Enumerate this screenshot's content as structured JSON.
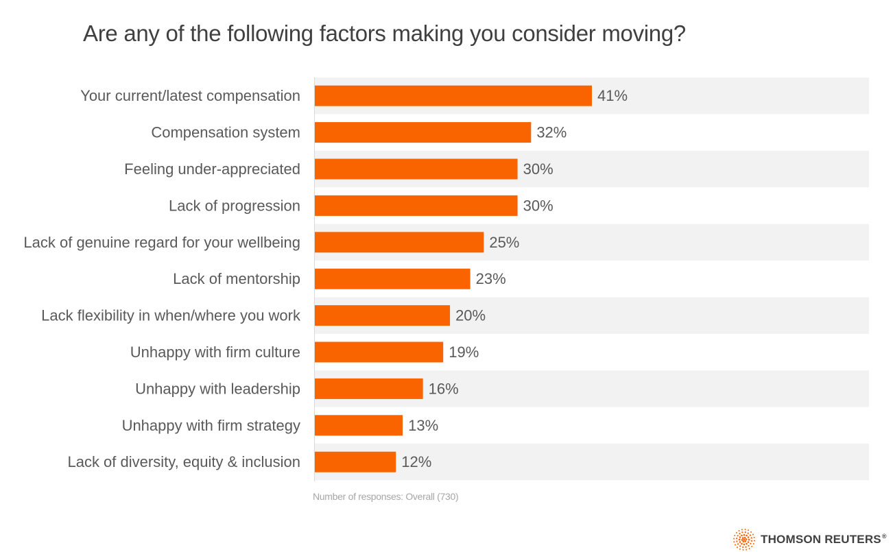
{
  "chart_data": {
    "type": "bar",
    "orientation": "horizontal",
    "title": "Are any of the following factors making you consider moving?",
    "categories": [
      "Your current/latest compensation",
      "Compensation system",
      "Feeling under-appreciated",
      "Lack of progression",
      "Lack of genuine regard for your wellbeing",
      "Lack of mentorship",
      "Lack flexibility in when/where you work",
      "Unhappy with firm culture",
      "Unhappy with leadership",
      "Unhappy with firm strategy",
      "Lack of diversity, equity & inclusion"
    ],
    "values": [
      41,
      32,
      30,
      30,
      25,
      23,
      20,
      19,
      16,
      13,
      12
    ],
    "value_labels": [
      "41%",
      "32%",
      "30%",
      "30%",
      "25%",
      "23%",
      "20%",
      "19%",
      "16%",
      "13%",
      "12%"
    ],
    "unit": "%",
    "xlim": [
      0,
      82
    ],
    "xlabel": "",
    "ylabel": "",
    "bar_color": "#f96400",
    "band_color": "#f2f2f2",
    "grid": false,
    "legend": "none"
  },
  "note": "Number of responses: Overall (730)",
  "brand": {
    "name": "THOMSON REUTERS",
    "registered_mark": "®",
    "logo_icon": "thomson-reuters-dot-sphere-icon",
    "logo_color": "#f96400"
  }
}
